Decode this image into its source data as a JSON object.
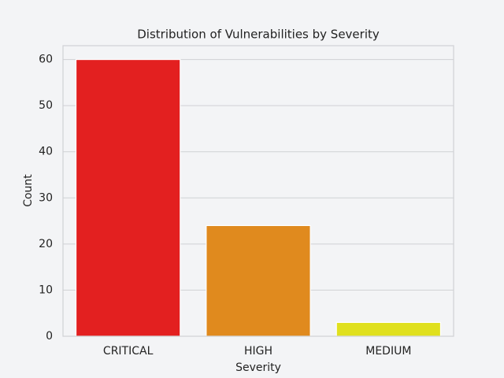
{
  "chart_data": {
    "type": "bar",
    "title": "Distribution of Vulnerabilities by Severity",
    "x_label": "Severity",
    "y_label": "Count",
    "categories": [
      "CRITICAL",
      "HIGH",
      "MEDIUM"
    ],
    "values": [
      60,
      24,
      3
    ],
    "colors": [
      "#e32020",
      "#e08a1e",
      "#e0e01e"
    ],
    "ylim": [
      0,
      63
    ],
    "yticks": [
      0,
      10,
      20,
      30,
      40,
      50,
      60
    ],
    "grid": true
  }
}
